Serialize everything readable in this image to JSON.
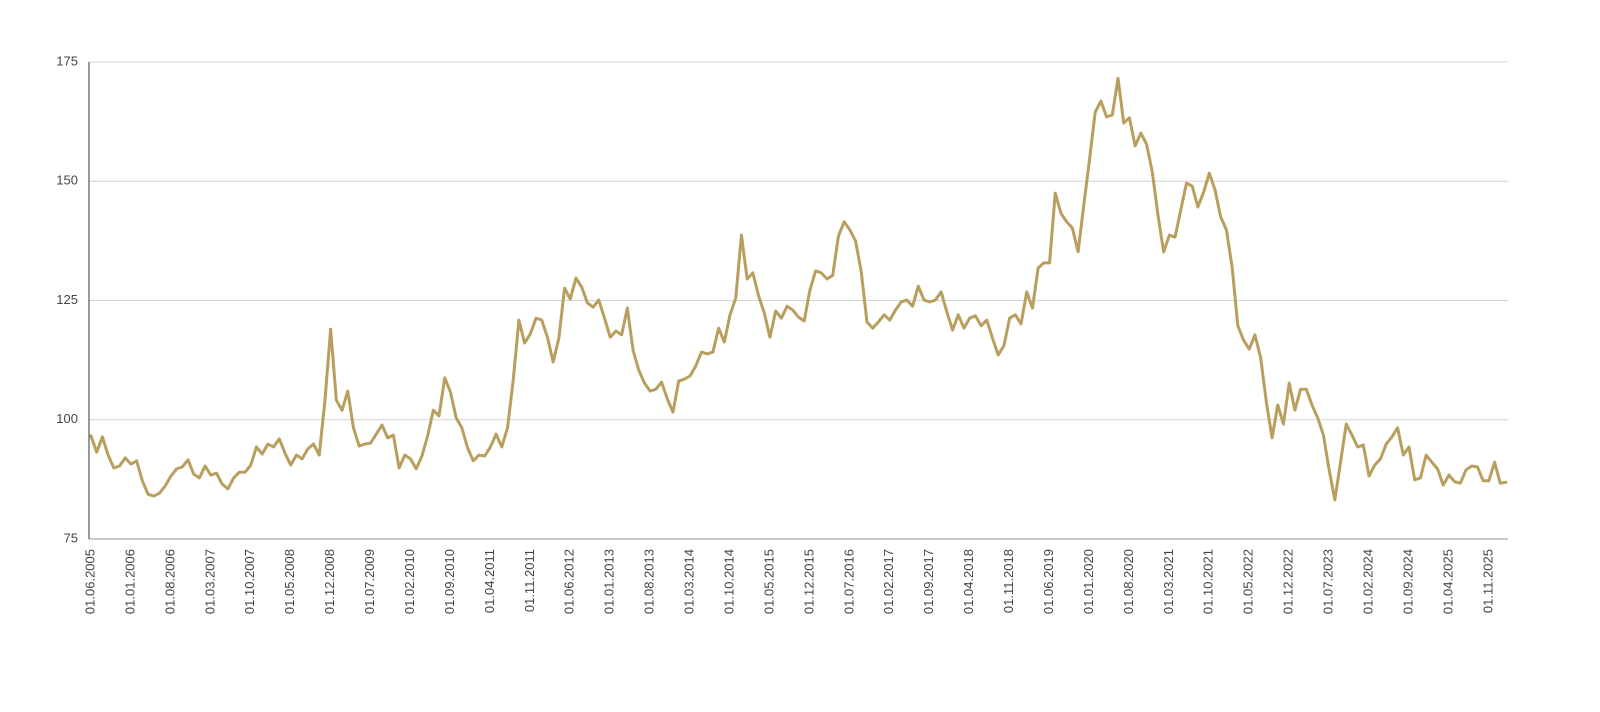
{
  "chart_data": {
    "type": "line",
    "categories": [
      "01.06.2005",
      null,
      null,
      null,
      null,
      null,
      null,
      "01.01.2006",
      null,
      null,
      null,
      null,
      null,
      null,
      "01.08.2006",
      null,
      null,
      null,
      null,
      null,
      null,
      "01.03.2007",
      null,
      null,
      null,
      null,
      null,
      null,
      "01.10.2007",
      null,
      null,
      null,
      null,
      null,
      null,
      "01.05.2008",
      null,
      null,
      null,
      null,
      null,
      null,
      "01.12.2008",
      null,
      null,
      null,
      null,
      null,
      null,
      "01.07.2009",
      null,
      null,
      null,
      null,
      null,
      null,
      "01.02.2010",
      null,
      null,
      null,
      null,
      null,
      null,
      "01.09.2010",
      null,
      null,
      null,
      null,
      null,
      null,
      "01.04.2011",
      null,
      null,
      null,
      null,
      null,
      null,
      "01.11.2011",
      null,
      null,
      null,
      null,
      null,
      null,
      "01.06.2012",
      null,
      null,
      null,
      null,
      null,
      null,
      "01.01.2013",
      null,
      null,
      null,
      null,
      null,
      null,
      "01.08.2013",
      null,
      null,
      null,
      null,
      null,
      null,
      "01.03.2014",
      null,
      null,
      null,
      null,
      null,
      null,
      "01.10.2014",
      null,
      null,
      null,
      null,
      null,
      null,
      "01.05.2015",
      null,
      null,
      null,
      null,
      null,
      null,
      "01.12.2015",
      null,
      null,
      null,
      null,
      null,
      null,
      "01.07.2016",
      null,
      null,
      null,
      null,
      null,
      null,
      "01.02.2017",
      null,
      null,
      null,
      null,
      null,
      null,
      "01.09.2017",
      null,
      null,
      null,
      null,
      null,
      null,
      "01.04.2018",
      null,
      null,
      null,
      null,
      null,
      null,
      "01.11.2018",
      null,
      null,
      null,
      null,
      null,
      null,
      "01.06.2019",
      null,
      null,
      null,
      null,
      null,
      null,
      "01.01.2020",
      null,
      null,
      null,
      null,
      null,
      null,
      "01.08.2020",
      null,
      null,
      null,
      null,
      null,
      null,
      "01.03.2021",
      null,
      null,
      null,
      null,
      null,
      null,
      "01.10.2021",
      null,
      null,
      null,
      null,
      null,
      null,
      "01.05.2022",
      null,
      null,
      null,
      null,
      null,
      null,
      "01.12.2022",
      null,
      null,
      null,
      null,
      null,
      null,
      "01.07.2023",
      null,
      null,
      null,
      null,
      null,
      null,
      "01.02.2024",
      null,
      null,
      null,
      null,
      null,
      null,
      "01.09.2024",
      null,
      null,
      null,
      null,
      null,
      null,
      "01.04.2025",
      null,
      null,
      null,
      null,
      null,
      null,
      "01.11.2025",
      null,
      null,
      null
    ],
    "values": [
      96.6,
      93.2,
      96.4,
      92.6,
      89.9,
      90.3,
      92,
      90.7,
      91.4,
      87.2,
      84.4,
      84,
      84.6,
      86.1,
      88.2,
      89.7,
      90.1,
      91.6,
      88.6,
      87.8,
      90.3,
      88.4,
      88.8,
      86.5,
      85.5,
      87.8,
      89,
      89,
      90.5,
      94.3,
      92.8,
      94.9,
      94.3,
      96,
      93,
      90.5,
      92.6,
      91.8,
      93.9,
      94.9,
      92.6,
      104,
      119,
      104.1,
      102,
      106,
      98.3,
      94.5,
      94.9,
      95.1,
      97,
      98.9,
      96.2,
      96.8,
      89.9,
      92.6,
      91.8,
      89.7,
      92.4,
      96.6,
      102,
      100.8,
      108.8,
      105.8,
      100.4,
      98.3,
      94.1,
      91.4,
      92.6,
      92.4,
      94.3,
      97,
      94.3,
      98.3,
      108.3,
      120.9,
      116.1,
      118,
      121.3,
      120.9,
      117.3,
      112.1,
      117.1,
      127.6,
      125.3,
      129.7,
      127.8,
      124.5,
      123.6,
      125.1,
      121.3,
      117.3,
      118.6,
      117.8,
      123.4,
      114.6,
      110.4,
      107.7,
      106,
      106.4,
      107.9,
      104.4,
      101.6,
      108.1,
      108.5,
      109.2,
      111.3,
      114.2,
      113.8,
      114.2,
      119.2,
      116.3,
      122,
      125.5,
      138.7,
      129.5,
      130.8,
      126,
      122.4,
      117.3,
      122.8,
      121.3,
      123.8,
      123,
      121.5,
      120.7,
      127.2,
      131.2,
      130.8,
      129.5,
      130.3,
      138.5,
      141.5,
      139.8,
      137.5,
      131,
      120.5,
      119.2,
      120.5,
      122,
      120.9,
      123,
      124.7,
      125.1,
      123.8,
      128,
      125.1,
      124.7,
      125.1,
      126.8,
      122.6,
      118.8,
      122,
      119.2,
      121.3,
      121.8,
      119.7,
      120.9,
      117.1,
      113.6,
      115.5,
      121.3,
      122,
      120.1,
      126.8,
      123.4,
      131.8,
      132.9,
      132.9,
      147.5,
      143.3,
      141.5,
      140.2,
      135.2,
      145,
      154.5,
      164.5,
      166.8,
      163.5,
      163.9,
      171.6,
      162.2,
      163.3,
      157.4,
      160.1,
      157.8,
      152,
      142.9,
      135.2,
      138.7,
      138.3,
      144,
      149.6,
      149,
      144.6,
      147.7,
      151.7,
      148.2,
      142.5,
      139.8,
      132,
      119.7,
      116.7,
      114.8,
      117.8,
      113,
      103.7,
      96.2,
      103.1,
      99.1,
      107.7,
      102,
      106.4,
      106.4,
      103.1,
      100.4,
      96.8,
      89.5,
      83.2,
      91.1,
      99.1,
      96.8,
      94.3,
      94.7,
      88.2,
      90.5,
      91.8,
      94.9,
      96.4,
      98.3,
      92.6,
      94.3,
      87.4,
      87.8,
      92.6,
      91.1,
      89.7,
      86.3,
      88.4,
      87,
      86.7,
      89.5,
      90.3,
      90.1,
      87.2,
      87.2,
      91.1,
      86.7,
      86.9
    ],
    "color": "#b89f5e",
    "ylim": [
      75,
      175
    ],
    "yticks": [
      75,
      100,
      125,
      150,
      175
    ],
    "grid": true
  }
}
